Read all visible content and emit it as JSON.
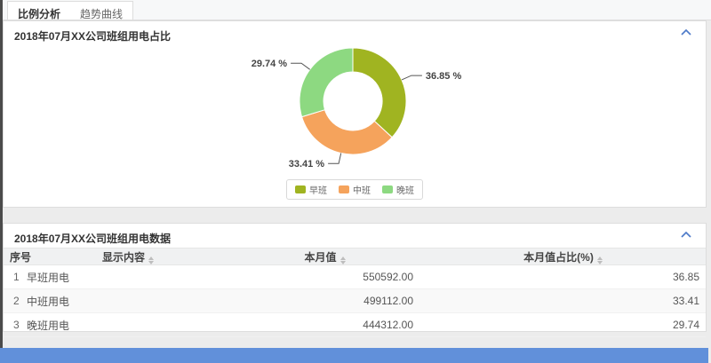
{
  "tabs": {
    "items": [
      {
        "label": "比例分析",
        "active": true
      },
      {
        "label": "趋势曲线",
        "active": false
      }
    ]
  },
  "panels": {
    "pie": {
      "title": "2018年07月XX公司班组用电占比"
    },
    "table": {
      "title": "2018年07月XX公司班组用电数据"
    }
  },
  "chart_data": {
    "type": "pie",
    "title": "2018年07月XX公司班组用电占比",
    "donut": true,
    "inner_radius_ratio": 0.55,
    "legend_position": "bottom",
    "legend": [
      "早班",
      "中班",
      "晚班"
    ],
    "series": [
      {
        "name": "早班",
        "value": 36.85,
        "label": "36.85 %",
        "color": "#a0b421"
      },
      {
        "name": "中班",
        "value": 33.41,
        "label": "33.41 %",
        "color": "#f5a35c"
      },
      {
        "name": "晚班",
        "value": 29.74,
        "label": "29.74 %",
        "color": "#8dd981"
      }
    ]
  },
  "table": {
    "columns": [
      {
        "label": "序号",
        "sortable": false
      },
      {
        "label": "显示内容",
        "sortable": true
      },
      {
        "label": "本月值",
        "sortable": true
      },
      {
        "label": "本月值占比(%)",
        "sortable": true
      }
    ],
    "rows": [
      {
        "index": "1",
        "name": "早班用电",
        "value": "550592.00",
        "ratio": "36.85"
      },
      {
        "index": "2",
        "name": "中班用电",
        "value": "499112.00",
        "ratio": "33.41"
      },
      {
        "index": "3",
        "name": "晚班用电",
        "value": "444312.00",
        "ratio": "29.74"
      }
    ]
  },
  "colors": {
    "early_shift": "#a0b421",
    "middle_shift": "#f5a35c",
    "late_shift": "#8dd981",
    "footer_bar": "#6190da",
    "accent_blue": "#4f7bc9"
  }
}
